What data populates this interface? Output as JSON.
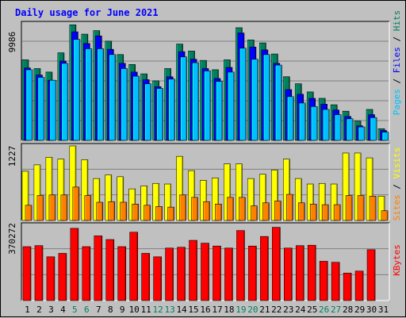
{
  "colors": {
    "background": "#c0c0c0",
    "title": "#0000ff",
    "hits": "#00805c",
    "files": "#0000ff",
    "pages": "#00c0ff",
    "visits": "#ffff00",
    "sites": "#ff8000",
    "kbytes": "#ff0000",
    "weekend": "#00805c"
  },
  "chart_data": [
    {
      "type": "bar",
      "title": "Daily usage for June 2021",
      "ymax_label": "9986",
      "ylim": [
        0,
        9986
      ],
      "categories": [
        "1",
        "2",
        "3",
        "4",
        "5",
        "6",
        "7",
        "8",
        "9",
        "10",
        "11",
        "12",
        "13",
        "14",
        "15",
        "16",
        "17",
        "18",
        "19",
        "20",
        "21",
        "22",
        "23",
        "24",
        "25",
        "26",
        "27",
        "28",
        "29",
        "30",
        "31"
      ],
      "weekend_days": [
        "5",
        "6",
        "12",
        "13",
        "19",
        "20",
        "26",
        "27"
      ],
      "series": [
        {
          "name": "Hits",
          "values": [
            6900,
            6150,
            5850,
            7500,
            9900,
            9100,
            9400,
            8500,
            7350,
            6500,
            5700,
            5100,
            6150,
            8250,
            7650,
            6850,
            6050,
            6900,
            9650,
            8600,
            8350,
            7400,
            5450,
            4850,
            4150,
            3600,
            3050,
            2500,
            1650,
            2650,
            1000
          ]
        },
        {
          "name": "Files",
          "values": [
            6200,
            5600,
            5150,
            6800,
            9300,
            8300,
            8950,
            7800,
            6600,
            5850,
            5200,
            4600,
            5450,
            7600,
            6950,
            6150,
            5300,
            6250,
            9200,
            8000,
            7750,
            6600,
            4350,
            3950,
            3600,
            3100,
            2600,
            2050,
            1250,
            2200,
            850
          ]
        },
        {
          "name": "Pages",
          "values": [
            6050,
            5400,
            5150,
            6600,
            8650,
            7850,
            7850,
            7350,
            6150,
            5500,
            4850,
            4450,
            5250,
            7150,
            6650,
            5950,
            5050,
            5850,
            7900,
            6950,
            7350,
            6450,
            3750,
            3200,
            2900,
            2650,
            2200,
            1850,
            1150,
            1950,
            700
          ]
        }
      ],
      "legend": [
        "Pages",
        "Files",
        "Hits"
      ]
    },
    {
      "type": "bar",
      "ymax_label": "1227",
      "ylim": [
        0,
        1227
      ],
      "categories": [
        "1",
        "2",
        "3",
        "4",
        "5",
        "6",
        "7",
        "8",
        "9",
        "10",
        "11",
        "12",
        "13",
        "14",
        "15",
        "16",
        "17",
        "18",
        "19",
        "20",
        "21",
        "22",
        "23",
        "24",
        "25",
        "26",
        "27",
        "28",
        "29",
        "30",
        "31"
      ],
      "series": [
        {
          "name": "Visits",
          "values": [
            810,
            915,
            1040,
            1010,
            1227,
            1000,
            690,
            750,
            720,
            520,
            570,
            610,
            600,
            1055,
            820,
            660,
            700,
            930,
            930,
            690,
            760,
            830,
            1010,
            690,
            600,
            610,
            600,
            1110,
            1110,
            1030,
            400
          ]
        },
        {
          "name": "Sites",
          "values": [
            250,
            410,
            420,
            420,
            550,
            410,
            300,
            310,
            300,
            270,
            250,
            230,
            220,
            420,
            380,
            310,
            270,
            380,
            380,
            240,
            290,
            320,
            430,
            290,
            270,
            260,
            260,
            410,
            410,
            400,
            160
          ]
        }
      ],
      "legend": [
        "Sites",
        "Visits"
      ]
    },
    {
      "type": "bar",
      "ymax_label": "370272",
      "ylim": [
        0,
        370272
      ],
      "categories": [
        "1",
        "2",
        "3",
        "4",
        "5",
        "6",
        "7",
        "8",
        "9",
        "10",
        "11",
        "12",
        "13",
        "14",
        "15",
        "16",
        "17",
        "18",
        "19",
        "20",
        "21",
        "22",
        "23",
        "24",
        "25",
        "26",
        "27",
        "28",
        "29",
        "30",
        "31"
      ],
      "series": [
        {
          "name": "KBytes",
          "values": [
            265000,
            270000,
            215000,
            232000,
            355000,
            265000,
            318000,
            300000,
            265000,
            336000,
            232000,
            215000,
            258000,
            262000,
            296000,
            282000,
            268000,
            258000,
            344000,
            268000,
            315000,
            360000,
            258000,
            270000,
            272000,
            193000,
            188000,
            135000,
            145000,
            250000,
            0
          ]
        }
      ],
      "legend": [
        "KBytes"
      ]
    }
  ]
}
